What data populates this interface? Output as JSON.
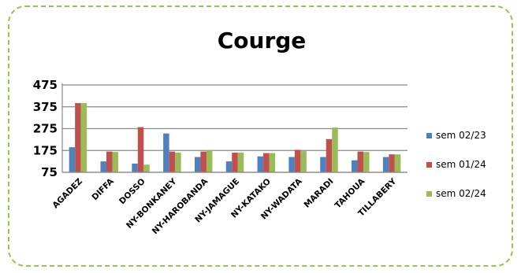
{
  "chart_data": {
    "type": "bar",
    "title": "Courge",
    "xlabel": "",
    "ylabel": "",
    "ylim": [
      75,
      475
    ],
    "yticks": [
      475,
      375,
      275,
      175,
      75
    ],
    "grid": true,
    "legend_position": "right",
    "categories": [
      "AGADEZ",
      "DIFFA",
      "DOSSO",
      "NY-BONKANEY",
      "NY-HAROBANDA",
      "NY-JAMAGUE",
      "NY-KATAKO",
      "NY-WADATA",
      "MARADI",
      "TAHOUA",
      "TILLABERY"
    ],
    "series": [
      {
        "name": "sem 02/23",
        "color": "#4f81bd",
        "values": [
          190,
          125,
          115,
          253,
          145,
          125,
          148,
          145,
          145,
          130,
          145
        ]
      },
      {
        "name": "sem 01/24",
        "color": "#c0504d",
        "values": [
          392,
          170,
          282,
          170,
          170,
          165,
          163,
          178,
          227,
          170,
          157
        ]
      },
      {
        "name": "sem 02/24",
        "color": "#9bbb59",
        "values": [
          392,
          168,
          110,
          165,
          175,
          165,
          163,
          172,
          280,
          168,
          157
        ]
      }
    ]
  }
}
